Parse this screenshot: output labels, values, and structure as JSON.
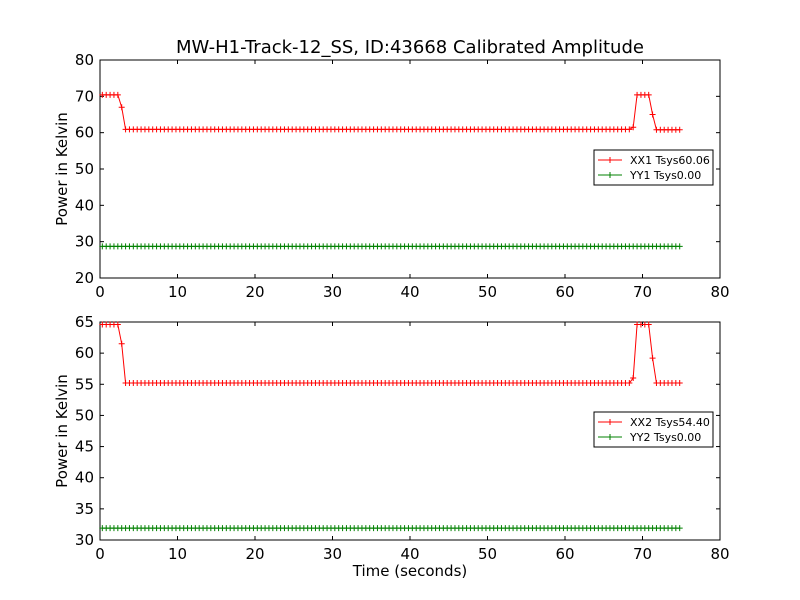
{
  "chart_data": [
    {
      "type": "line",
      "title": "MW-H1-Track-12_SS, ID:43668 Calibrated Amplitude",
      "xlabel": "",
      "ylabel": "Power in Kelvin",
      "xlim": [
        0,
        80
      ],
      "ylim": [
        20,
        80
      ],
      "xticks": [
        "0",
        "10",
        "20",
        "30",
        "40",
        "50",
        "60",
        "70",
        "80"
      ],
      "yticks": [
        "20",
        "30",
        "40",
        "50",
        "60",
        "70",
        "80"
      ],
      "grid": false,
      "legend_position": "right",
      "series": [
        {
          "name": "XX1 Tsys60.06",
          "color": "#ff0000",
          "marker": "+",
          "x_start": 0.3,
          "x_step": 0.5,
          "segments": [
            {
              "to": 2.5,
              "value": 70.4
            },
            {
              "to": 2.8,
              "value": 67
            },
            {
              "to": 68.5,
              "value": 60.9
            },
            {
              "to": 68.8,
              "value": 61.5
            },
            {
              "to": 69.0,
              "value": 68
            },
            {
              "to": 71.0,
              "value": 70.4
            },
            {
              "to": 71.3,
              "value": 65
            },
            {
              "to": 75.0,
              "value": 60.8
            }
          ]
        },
        {
          "name": "YY1 Tsys0.00",
          "color": "#008000",
          "marker": "+",
          "x_start": 0.3,
          "x_step": 0.5,
          "segments": [
            {
              "to": 75.0,
              "value": 28.7
            }
          ]
        }
      ]
    },
    {
      "type": "line",
      "title": "",
      "xlabel": "Time (seconds)",
      "ylabel": "Power in Kelvin",
      "xlim": [
        0,
        80
      ],
      "ylim": [
        30,
        65
      ],
      "xticks": [
        "0",
        "10",
        "20",
        "30",
        "40",
        "50",
        "60",
        "70",
        "80"
      ],
      "yticks": [
        "30",
        "35",
        "40",
        "45",
        "50",
        "55",
        "60",
        "65"
      ],
      "grid": false,
      "legend_position": "right",
      "series": [
        {
          "name": "XX2 Tsys54.40",
          "color": "#ff0000",
          "marker": "+",
          "x_start": 0.3,
          "x_step": 0.5,
          "segments": [
            {
              "to": 2.5,
              "value": 64.6
            },
            {
              "to": 2.8,
              "value": 61.5
            },
            {
              "to": 68.5,
              "value": 55.2
            },
            {
              "to": 68.8,
              "value": 56
            },
            {
              "to": 69.0,
              "value": 63
            },
            {
              "to": 71.0,
              "value": 64.6
            },
            {
              "to": 71.3,
              "value": 59.2
            },
            {
              "to": 75.0,
              "value": 55.2
            }
          ]
        },
        {
          "name": "YY2 Tsys0.00",
          "color": "#008000",
          "marker": "+",
          "x_start": 0.3,
          "x_step": 0.5,
          "segments": [
            {
              "to": 75.0,
              "value": 31.9
            }
          ]
        }
      ]
    }
  ]
}
